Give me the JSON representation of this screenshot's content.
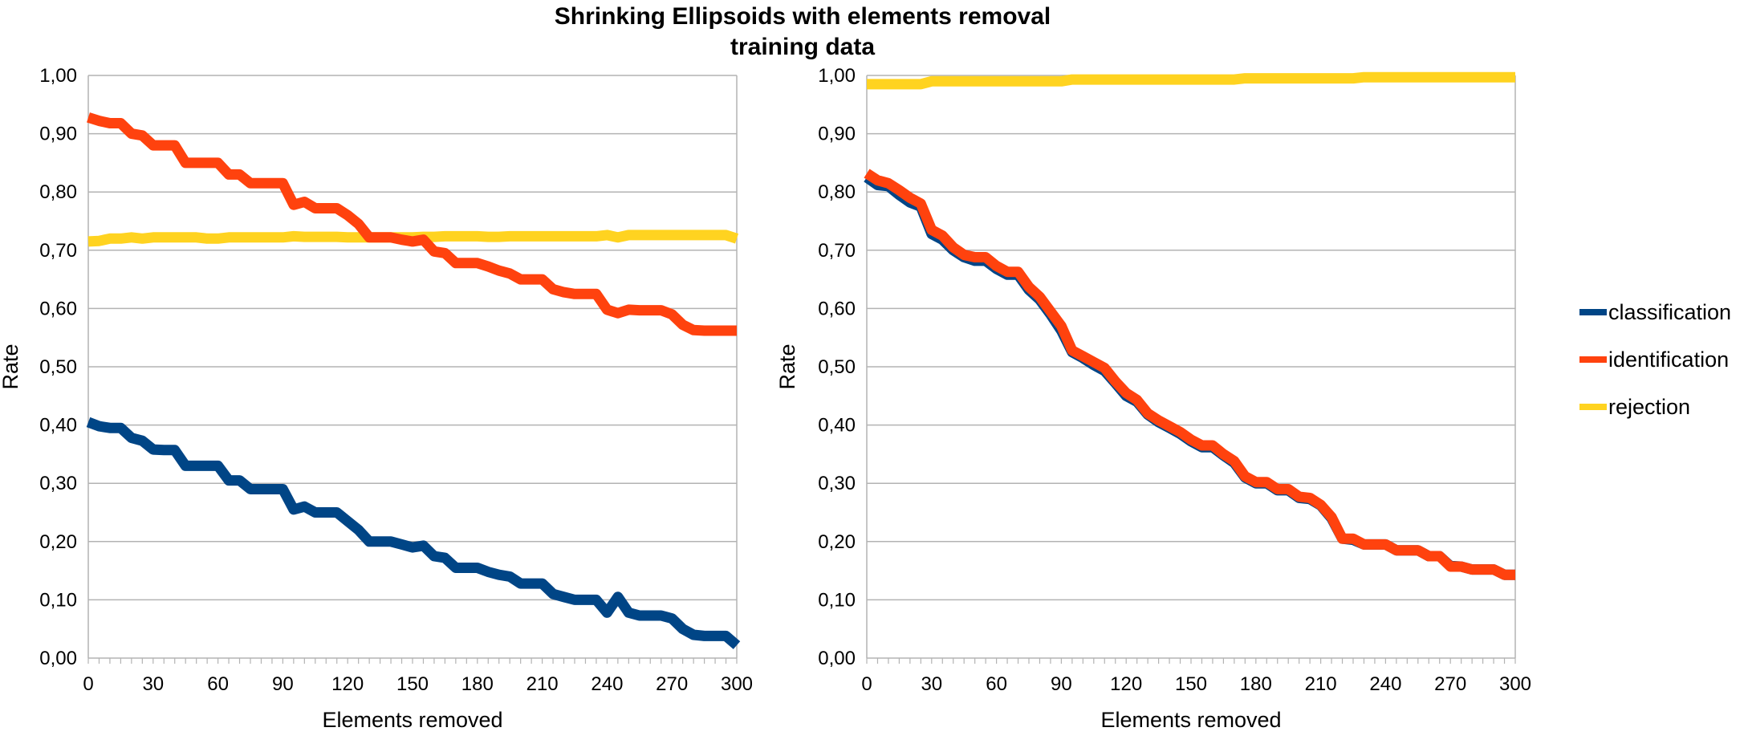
{
  "chart_title": {
    "line1": "Shrinking Ellipsoids with elements removal",
    "line2": "training data"
  },
  "legend": {
    "items": [
      {
        "label": "classification",
        "color": "#004586"
      },
      {
        "label": "identification",
        "color": "#ff420e"
      },
      {
        "label": "rejection",
        "color": "#ffd320"
      }
    ],
    "placement": "right"
  },
  "chart_data": [
    {
      "type": "line",
      "title": "",
      "xlabel": "Elements removed",
      "ylabel": "Rate",
      "xlim": [
        0,
        300
      ],
      "ylim": [
        0,
        1
      ],
      "xticks": [
        "0",
        "30",
        "60",
        "90",
        "120",
        "150",
        "180",
        "210",
        "240",
        "270",
        "300"
      ],
      "yticks": [
        "0,00",
        "0,10",
        "0,20",
        "0,30",
        "0,40",
        "0,50",
        "0,60",
        "0,70",
        "0,80",
        "0,90",
        "1,00"
      ],
      "grid": true,
      "x": [
        0,
        5,
        10,
        15,
        20,
        25,
        30,
        35,
        40,
        45,
        50,
        55,
        60,
        65,
        70,
        75,
        80,
        85,
        90,
        95,
        100,
        105,
        110,
        115,
        120,
        125,
        130,
        135,
        140,
        145,
        150,
        155,
        160,
        165,
        170,
        175,
        180,
        185,
        190,
        195,
        200,
        205,
        210,
        215,
        220,
        225,
        230,
        235,
        240,
        245,
        250,
        255,
        260,
        265,
        270,
        275,
        280,
        285,
        290,
        295,
        300
      ],
      "series": [
        {
          "name": "classification",
          "color": "#004586",
          "values": [
            0.405,
            0.398,
            0.395,
            0.395,
            0.378,
            0.373,
            0.358,
            0.357,
            0.357,
            0.33,
            0.33,
            0.33,
            0.33,
            0.305,
            0.305,
            0.29,
            0.29,
            0.29,
            0.29,
            0.255,
            0.26,
            0.25,
            0.25,
            0.25,
            0.235,
            0.22,
            0.2,
            0.2,
            0.2,
            0.195,
            0.19,
            0.193,
            0.175,
            0.172,
            0.155,
            0.155,
            0.155,
            0.148,
            0.143,
            0.14,
            0.128,
            0.128,
            0.128,
            0.11,
            0.105,
            0.1,
            0.1,
            0.1,
            0.078,
            0.105,
            0.078,
            0.073,
            0.073,
            0.073,
            0.068,
            0.05,
            0.04,
            0.038,
            0.038,
            0.038,
            0.022
          ]
        },
        {
          "name": "identification",
          "color": "#ff420e",
          "values": [
            0.928,
            0.922,
            0.918,
            0.918,
            0.9,
            0.897,
            0.88,
            0.88,
            0.88,
            0.85,
            0.85,
            0.85,
            0.85,
            0.83,
            0.83,
            0.815,
            0.815,
            0.815,
            0.815,
            0.778,
            0.783,
            0.772,
            0.772,
            0.772,
            0.76,
            0.745,
            0.722,
            0.722,
            0.722,
            0.718,
            0.715,
            0.718,
            0.698,
            0.695,
            0.678,
            0.678,
            0.678,
            0.672,
            0.665,
            0.66,
            0.65,
            0.65,
            0.65,
            0.633,
            0.628,
            0.625,
            0.625,
            0.625,
            0.598,
            0.592,
            0.598,
            0.597,
            0.597,
            0.597,
            0.59,
            0.572,
            0.563,
            0.562,
            0.562,
            0.562,
            0.562
          ]
        },
        {
          "name": "rejection",
          "color": "#ffd320",
          "values": [
            0.715,
            0.716,
            0.72,
            0.72,
            0.722,
            0.72,
            0.722,
            0.722,
            0.722,
            0.722,
            0.722,
            0.72,
            0.72,
            0.722,
            0.722,
            0.722,
            0.722,
            0.722,
            0.722,
            0.724,
            0.723,
            0.723,
            0.723,
            0.723,
            0.722,
            0.722,
            0.722,
            0.722,
            0.722,
            0.722,
            0.722,
            0.723,
            0.723,
            0.724,
            0.724,
            0.724,
            0.724,
            0.723,
            0.723,
            0.724,
            0.724,
            0.724,
            0.724,
            0.724,
            0.724,
            0.724,
            0.724,
            0.724,
            0.726,
            0.722,
            0.726,
            0.726,
            0.726,
            0.726,
            0.726,
            0.726,
            0.726,
            0.726,
            0.726,
            0.726,
            0.72
          ]
        }
      ]
    },
    {
      "type": "line",
      "title": "",
      "xlabel": "Elements removed",
      "ylabel": "Rate",
      "xlim": [
        0,
        300
      ],
      "ylim": [
        0,
        1
      ],
      "xticks": [
        "0",
        "30",
        "60",
        "90",
        "120",
        "150",
        "180",
        "210",
        "240",
        "270",
        "300"
      ],
      "yticks": [
        "0,00",
        "0,10",
        "0,20",
        "0,30",
        "0,40",
        "0,50",
        "0,60",
        "0,70",
        "0,80",
        "0,90",
        "1,00"
      ],
      "grid": true,
      "x": [
        0,
        5,
        10,
        15,
        20,
        25,
        30,
        35,
        40,
        45,
        50,
        55,
        60,
        65,
        70,
        75,
        80,
        85,
        90,
        95,
        100,
        105,
        110,
        115,
        120,
        125,
        130,
        135,
        140,
        145,
        150,
        155,
        160,
        165,
        170,
        175,
        180,
        185,
        190,
        195,
        200,
        205,
        210,
        215,
        220,
        225,
        230,
        235,
        240,
        245,
        250,
        255,
        260,
        265,
        270,
        275,
        280,
        285,
        290,
        295,
        300
      ],
      "series": [
        {
          "name": "classification",
          "color": "#004586",
          "values": [
            0.825,
            0.812,
            0.81,
            0.795,
            0.782,
            0.775,
            0.728,
            0.718,
            0.7,
            0.688,
            0.682,
            0.682,
            0.668,
            0.658,
            0.658,
            0.632,
            0.615,
            0.59,
            0.562,
            0.525,
            0.515,
            0.503,
            0.493,
            0.472,
            0.45,
            0.44,
            0.418,
            0.405,
            0.395,
            0.385,
            0.372,
            0.362,
            0.362,
            0.348,
            0.335,
            0.31,
            0.3,
            0.3,
            0.288,
            0.288,
            0.275,
            0.273,
            0.262,
            0.24,
            0.205,
            0.203,
            0.195,
            0.195,
            0.195,
            0.185,
            0.185,
            0.185,
            0.175,
            0.175,
            0.158,
            0.157,
            0.152,
            0.152,
            0.152,
            0.143,
            0.143
          ]
        },
        {
          "name": "identification",
          "color": "#ff420e",
          "values": [
            0.832,
            0.82,
            0.815,
            0.803,
            0.79,
            0.78,
            0.735,
            0.725,
            0.705,
            0.692,
            0.688,
            0.688,
            0.673,
            0.663,
            0.663,
            0.637,
            0.62,
            0.595,
            0.57,
            0.528,
            0.518,
            0.508,
            0.498,
            0.475,
            0.455,
            0.443,
            0.42,
            0.408,
            0.398,
            0.388,
            0.375,
            0.365,
            0.365,
            0.35,
            0.338,
            0.312,
            0.302,
            0.302,
            0.29,
            0.29,
            0.277,
            0.275,
            0.263,
            0.242,
            0.205,
            0.205,
            0.195,
            0.195,
            0.195,
            0.185,
            0.185,
            0.185,
            0.175,
            0.175,
            0.157,
            0.157,
            0.152,
            0.152,
            0.152,
            0.143,
            0.143
          ]
        },
        {
          "name": "rejection",
          "color": "#ffd320",
          "values": [
            0.985,
            0.985,
            0.985,
            0.985,
            0.985,
            0.985,
            0.99,
            0.99,
            0.99,
            0.99,
            0.99,
            0.99,
            0.99,
            0.99,
            0.99,
            0.99,
            0.99,
            0.99,
            0.99,
            0.993,
            0.993,
            0.993,
            0.993,
            0.993,
            0.993,
            0.993,
            0.993,
            0.993,
            0.993,
            0.993,
            0.993,
            0.993,
            0.993,
            0.993,
            0.993,
            0.995,
            0.995,
            0.995,
            0.995,
            0.995,
            0.995,
            0.995,
            0.995,
            0.995,
            0.995,
            0.995,
            0.997,
            0.997,
            0.997,
            0.997,
            0.997,
            0.997,
            0.997,
            0.997,
            0.997,
            0.997,
            0.997,
            0.997,
            0.997,
            0.997,
            0.997
          ]
        }
      ]
    }
  ]
}
